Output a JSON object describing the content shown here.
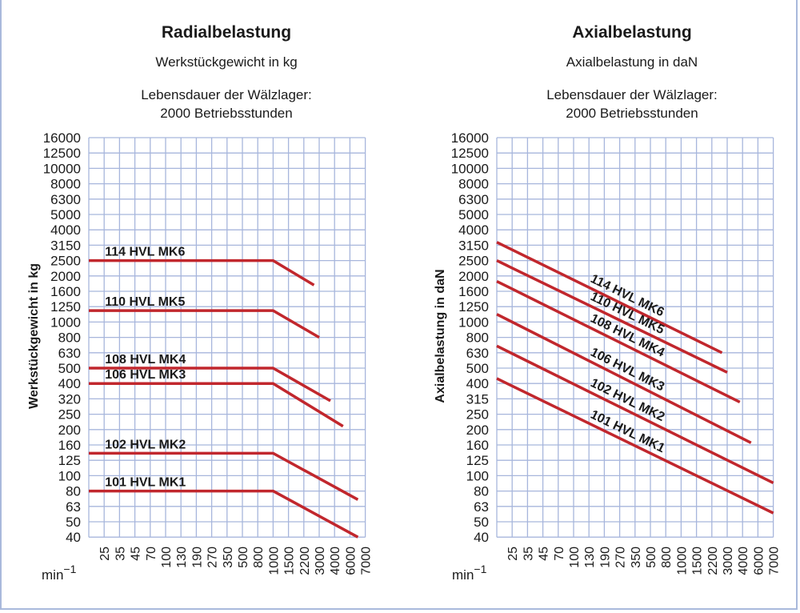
{
  "colors": {
    "grid": "#a7b6dc",
    "line": "#c1272d",
    "frame": "#a9b9dc",
    "text": "#1a1a1a"
  },
  "chart_data": [
    {
      "type": "line",
      "title": "Radialbelastung",
      "subtitle": "Werkstückgewicht in kg",
      "note_line1": "Lebensdauer der Wälzlager:",
      "note_line2": "2000 Betriebsstunden",
      "ylabel": "Werkstückgewicht in kg",
      "xlabel": "min",
      "xlabel_exp": "−1",
      "grid": true,
      "x_ticks": [
        25,
        35,
        45,
        70,
        100,
        130,
        190,
        270,
        350,
        500,
        800,
        1000,
        1500,
        2200,
        3000,
        4000,
        6000,
        7000
      ],
      "y_ticks": [
        16000,
        12500,
        10000,
        8000,
        6300,
        5000,
        4000,
        3150,
        2500,
        2000,
        1600,
        1250,
        1000,
        800,
        630,
        500,
        400,
        320,
        250,
        200,
        160,
        125,
        100,
        80,
        63,
        50,
        40
      ],
      "series": [
        {
          "name": "114 HVL MK6",
          "start_value": 2500,
          "points": [
            [
              1000,
              2500
            ],
            [
              2700,
              1750
            ]
          ]
        },
        {
          "name": "110 HVL MK5",
          "start_value": 1180,
          "points": [
            [
              1000,
              1180
            ],
            [
              3000,
              800
            ]
          ]
        },
        {
          "name": "108 HVL MK4",
          "start_value": 500,
          "points": [
            [
              1000,
              500
            ],
            [
              3700,
              310
            ]
          ]
        },
        {
          "name": "106 HVL MK3",
          "start_value": 400,
          "points": [
            [
              1000,
              400
            ],
            [
              5000,
              210
            ]
          ]
        },
        {
          "name": "102 HVL MK2",
          "start_value": 140,
          "points": [
            [
              1000,
              140
            ],
            [
              6500,
              70
            ]
          ]
        },
        {
          "name": "101 HVL MK1",
          "start_value": 80,
          "points": [
            [
              1000,
              80
            ],
            [
              6500,
              40
            ]
          ]
        }
      ]
    },
    {
      "type": "line",
      "title": "Axialbelastung",
      "subtitle": "Axialbelastung in daN",
      "note_line1": "Lebensdauer der Wälzlager:",
      "note_line2": "2000 Betriebsstunden",
      "ylabel": "Axialbelastung in daN",
      "xlabel": "min",
      "xlabel_exp": "−1",
      "grid": true,
      "x_ticks": [
        25,
        35,
        45,
        70,
        100,
        130,
        190,
        270,
        350,
        500,
        800,
        1000,
        1500,
        2200,
        3000,
        4000,
        6000,
        7000
      ],
      "y_ticks": [
        16000,
        12500,
        10000,
        8000,
        6300,
        5000,
        4000,
        3150,
        2500,
        2000,
        1600,
        1250,
        1000,
        800,
        630,
        500,
        400,
        315,
        250,
        200,
        160,
        125,
        100,
        80,
        63,
        50,
        40
      ],
      "series": [
        {
          "name": "114 HVL MK6",
          "start_value": 3300,
          "points": [
            [
              2700,
              630
            ]
          ]
        },
        {
          "name": "110 HVL MK5",
          "start_value": 2500,
          "points": [
            [
              3000,
              470
            ]
          ]
        },
        {
          "name": "108 HVL MK4",
          "start_value": 1850,
          "points": [
            [
              3800,
              300
            ]
          ]
        },
        {
          "name": "106 HVL MK3",
          "start_value": 1120,
          "points": [
            [
              5000,
              165
            ]
          ]
        },
        {
          "name": "102 HVL MK2",
          "start_value": 700,
          "points": [
            [
              7000,
              90
            ]
          ]
        },
        {
          "name": "101 HVL MK1",
          "start_value": 430,
          "points": [
            [
              7000,
              57
            ]
          ]
        }
      ]
    }
  ]
}
